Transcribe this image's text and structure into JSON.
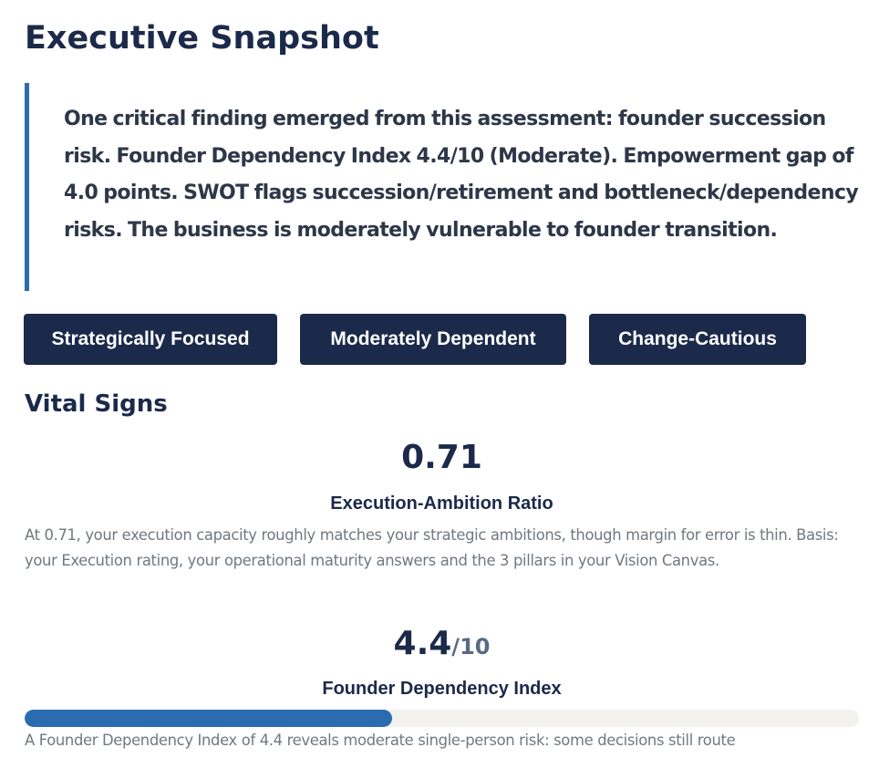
{
  "page": {
    "title": "Executive Snapshot",
    "summary": "One critical finding emerged from this assessment: founder succession risk. Founder Dependency Index 4.4/10 (Moderate). Empowerment gap of 4.0 points. SWOT flags succession/retirement and bottleneck/dependency risks. The business is moderately vulnerable to founder transition."
  },
  "tags": [
    {
      "label": "Strategically Focused"
    },
    {
      "label": "Moderately Dependent"
    },
    {
      "label": "Change-Cautious"
    }
  ],
  "vital_signs": {
    "heading": "Vital Signs",
    "metrics": [
      {
        "value": "0.71",
        "label": "Execution-Ambition Ratio",
        "description": "At 0.71, your execution capacity roughly matches your strategic ambitions, though margin for error is thin. Basis: your Execution rating, your operational maturity answers and the 3 pillars in your Vision Canvas."
      },
      {
        "value": "4.4",
        "suffix": "/10",
        "label": "Founder Dependency Index",
        "progress": 0.44,
        "description": "A Founder Dependency Index of 4.4 reveals moderate single-person risk: some decisions still route"
      }
    ]
  },
  "colors": {
    "navy": "#1b2a4a",
    "accent_blue": "#2b6cb0",
    "track": "#f4f2ee",
    "muted_text": "#707880"
  }
}
